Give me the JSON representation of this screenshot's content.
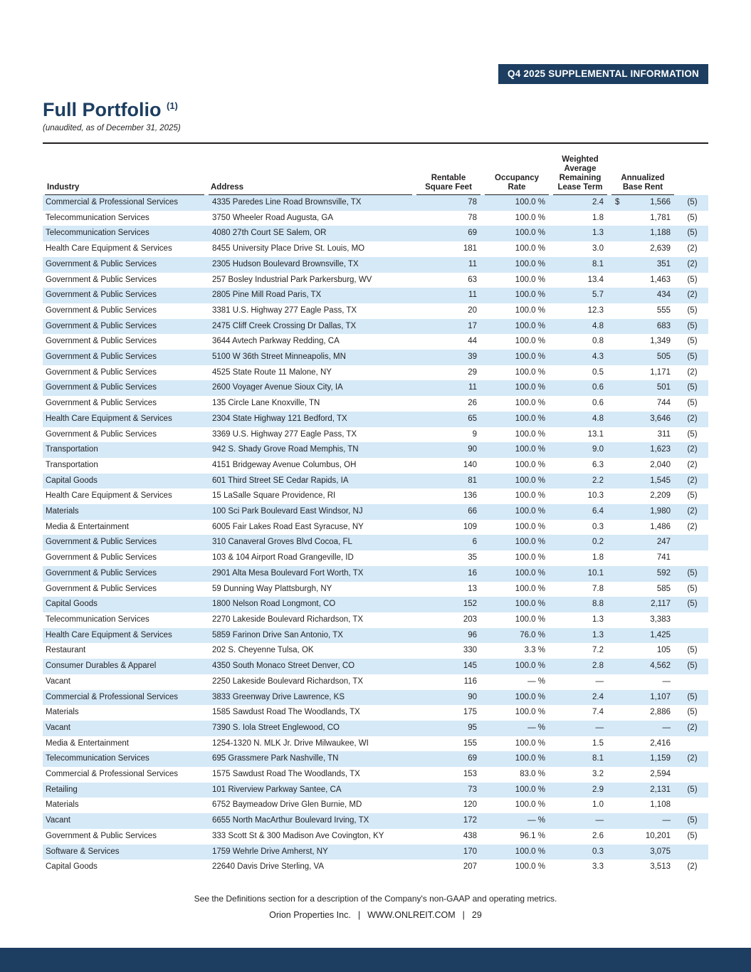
{
  "colors": {
    "navy": "#1d3e60",
    "row_stripe": "#d5e9f7"
  },
  "banner": {
    "label": "Q4 2025 SUPPLEMENTAL INFORMATION"
  },
  "header": {
    "title": "Full Portfolio",
    "title_note": "(1)",
    "subtitle": "(unaudited, as of December 31, 2025)"
  },
  "table": {
    "columns": {
      "industry": "Industry",
      "address": "Address",
      "rentable_sf": "Rentable\nSquare Feet",
      "occupancy": "Occupancy\nRate",
      "lease_term": "Weighted\nAverage\nRemaining\nLease Term",
      "base_rent": "Annualized\nBase Rent"
    },
    "rows": [
      {
        "industry": "Commercial & Professional Services",
        "address": "4335 Paredes Line Road Brownsville, TX",
        "rsf": "78",
        "occupancy": "100.0 %",
        "lease_term": "2.4",
        "currency": "$",
        "base_rent": "1,566",
        "note": "(5)"
      },
      {
        "industry": "Telecommunication Services",
        "address": "3750 Wheeler Road Augusta, GA",
        "rsf": "78",
        "occupancy": "100.0 %",
        "lease_term": "1.8",
        "currency": "",
        "base_rent": "1,781",
        "note": "(5)"
      },
      {
        "industry": "Telecommunication Services",
        "address": "4080 27th Court SE Salem, OR",
        "rsf": "69",
        "occupancy": "100.0 %",
        "lease_term": "1.3",
        "currency": "",
        "base_rent": "1,188",
        "note": "(5)"
      },
      {
        "industry": "Health Care Equipment & Services",
        "address": "8455 University Place Drive St. Louis, MO",
        "rsf": "181",
        "occupancy": "100.0 %",
        "lease_term": "3.0",
        "currency": "",
        "base_rent": "2,639",
        "note": "(2)"
      },
      {
        "industry": "Government & Public Services",
        "address": "2305 Hudson Boulevard Brownsville, TX",
        "rsf": "11",
        "occupancy": "100.0 %",
        "lease_term": "8.1",
        "currency": "",
        "base_rent": "351",
        "note": "(2)"
      },
      {
        "industry": "Government & Public Services",
        "address": "257 Bosley Industrial Park Parkersburg, WV",
        "rsf": "63",
        "occupancy": "100.0 %",
        "lease_term": "13.4",
        "currency": "",
        "base_rent": "1,463",
        "note": "(5)"
      },
      {
        "industry": "Government & Public Services",
        "address": "2805 Pine Mill Road Paris, TX",
        "rsf": "11",
        "occupancy": "100.0 %",
        "lease_term": "5.7",
        "currency": "",
        "base_rent": "434",
        "note": "(2)"
      },
      {
        "industry": "Government & Public Services",
        "address": "3381 U.S. Highway 277 Eagle Pass, TX",
        "rsf": "20",
        "occupancy": "100.0 %",
        "lease_term": "12.3",
        "currency": "",
        "base_rent": "555",
        "note": "(5)"
      },
      {
        "industry": "Government & Public Services",
        "address": "2475 Cliff Creek Crossing Dr Dallas, TX",
        "rsf": "17",
        "occupancy": "100.0 %",
        "lease_term": "4.8",
        "currency": "",
        "base_rent": "683",
        "note": "(5)"
      },
      {
        "industry": "Government & Public Services",
        "address": "3644 Avtech Parkway Redding, CA",
        "rsf": "44",
        "occupancy": "100.0 %",
        "lease_term": "0.8",
        "currency": "",
        "base_rent": "1,349",
        "note": "(5)"
      },
      {
        "industry": "Government & Public Services",
        "address": "5100 W 36th Street Minneapolis, MN",
        "rsf": "39",
        "occupancy": "100.0 %",
        "lease_term": "4.3",
        "currency": "",
        "base_rent": "505",
        "note": "(5)"
      },
      {
        "industry": "Government & Public Services",
        "address": "4525 State Route 11 Malone, NY",
        "rsf": "29",
        "occupancy": "100.0 %",
        "lease_term": "0.5",
        "currency": "",
        "base_rent": "1,171",
        "note": "(2)"
      },
      {
        "industry": "Government & Public Services",
        "address": "2600 Voyager Avenue Sioux City, IA",
        "rsf": "11",
        "occupancy": "100.0 %",
        "lease_term": "0.6",
        "currency": "",
        "base_rent": "501",
        "note": "(5)"
      },
      {
        "industry": "Government & Public Services",
        "address": "135 Circle Lane Knoxville, TN",
        "rsf": "26",
        "occupancy": "100.0 %",
        "lease_term": "0.6",
        "currency": "",
        "base_rent": "744",
        "note": "(5)"
      },
      {
        "industry": "Health Care Equipment & Services",
        "address": "2304 State Highway 121 Bedford, TX",
        "rsf": "65",
        "occupancy": "100.0 %",
        "lease_term": "4.8",
        "currency": "",
        "base_rent": "3,646",
        "note": "(2)"
      },
      {
        "industry": "Government & Public Services",
        "address": "3369 U.S. Highway 277 Eagle Pass, TX",
        "rsf": "9",
        "occupancy": "100.0 %",
        "lease_term": "13.1",
        "currency": "",
        "base_rent": "311",
        "note": "(5)"
      },
      {
        "industry": "Transportation",
        "address": "942 S. Shady Grove Road Memphis, TN",
        "rsf": "90",
        "occupancy": "100.0 %",
        "lease_term": "9.0",
        "currency": "",
        "base_rent": "1,623",
        "note": "(2)"
      },
      {
        "industry": "Transportation",
        "address": "4151 Bridgeway Avenue Columbus, OH",
        "rsf": "140",
        "occupancy": "100.0 %",
        "lease_term": "6.3",
        "currency": "",
        "base_rent": "2,040",
        "note": "(2)"
      },
      {
        "industry": "Capital Goods",
        "address": "601 Third Street SE Cedar Rapids, IA",
        "rsf": "81",
        "occupancy": "100.0 %",
        "lease_term": "2.2",
        "currency": "",
        "base_rent": "1,545",
        "note": "(2)"
      },
      {
        "industry": "Health Care Equipment & Services",
        "address": "15 LaSalle Square Providence, RI",
        "rsf": "136",
        "occupancy": "100.0 %",
        "lease_term": "10.3",
        "currency": "",
        "base_rent": "2,209",
        "note": "(5)"
      },
      {
        "industry": "Materials",
        "address": "100 Sci Park Boulevard East Windsor, NJ",
        "rsf": "66",
        "occupancy": "100.0 %",
        "lease_term": "6.4",
        "currency": "",
        "base_rent": "1,980",
        "note": "(2)"
      },
      {
        "industry": "Media & Entertainment",
        "address": "6005 Fair Lakes Road East Syracuse, NY",
        "rsf": "109",
        "occupancy": "100.0 %",
        "lease_term": "0.3",
        "currency": "",
        "base_rent": "1,486",
        "note": "(2)"
      },
      {
        "industry": "Government & Public Services",
        "address": "310 Canaveral Groves Blvd Cocoa, FL",
        "rsf": "6",
        "occupancy": "100.0 %",
        "lease_term": "0.2",
        "currency": "",
        "base_rent": "247",
        "note": ""
      },
      {
        "industry": "Government & Public Services",
        "address": "103 & 104 Airport Road Grangeville, ID",
        "rsf": "35",
        "occupancy": "100.0 %",
        "lease_term": "1.8",
        "currency": "",
        "base_rent": "741",
        "note": ""
      },
      {
        "industry": "Government & Public Services",
        "address": "2901 Alta Mesa Boulevard Fort Worth, TX",
        "rsf": "16",
        "occupancy": "100.0 %",
        "lease_term": "10.1",
        "currency": "",
        "base_rent": "592",
        "note": "(5)"
      },
      {
        "industry": "Government & Public Services",
        "address": "59 Dunning Way Plattsburgh, NY",
        "rsf": "13",
        "occupancy": "100.0 %",
        "lease_term": "7.8",
        "currency": "",
        "base_rent": "585",
        "note": "(5)"
      },
      {
        "industry": "Capital Goods",
        "address": "1800 Nelson Road Longmont, CO",
        "rsf": "152",
        "occupancy": "100.0 %",
        "lease_term": "8.8",
        "currency": "",
        "base_rent": "2,117",
        "note": "(5)"
      },
      {
        "industry": "Telecommunication Services",
        "address": "2270 Lakeside Boulevard Richardson, TX",
        "rsf": "203",
        "occupancy": "100.0 %",
        "lease_term": "1.3",
        "currency": "",
        "base_rent": "3,383",
        "note": ""
      },
      {
        "industry": "Health Care Equipment & Services",
        "address": "5859 Farinon Drive San Antonio, TX",
        "rsf": "96",
        "occupancy": "76.0 %",
        "lease_term": "1.3",
        "currency": "",
        "base_rent": "1,425",
        "note": ""
      },
      {
        "industry": "Restaurant",
        "address": "202 S. Cheyenne Tulsa, OK",
        "rsf": "330",
        "occupancy": "3.3 %",
        "lease_term": "7.2",
        "currency": "",
        "base_rent": "105",
        "note": "(5)"
      },
      {
        "industry": "Consumer Durables & Apparel",
        "address": "4350 South Monaco Street Denver, CO",
        "rsf": "145",
        "occupancy": "100.0 %",
        "lease_term": "2.8",
        "currency": "",
        "base_rent": "4,562",
        "note": "(5)"
      },
      {
        "industry": "Vacant",
        "address": "2250 Lakeside Boulevard Richardson, TX",
        "rsf": "116",
        "occupancy": "— %",
        "lease_term": "—",
        "currency": "",
        "base_rent": "—",
        "note": ""
      },
      {
        "industry": "Commercial & Professional Services",
        "address": "3833 Greenway Drive Lawrence, KS",
        "rsf": "90",
        "occupancy": "100.0 %",
        "lease_term": "2.4",
        "currency": "",
        "base_rent": "1,107",
        "note": "(5)"
      },
      {
        "industry": "Materials",
        "address": "1585 Sawdust Road The Woodlands, TX",
        "rsf": "175",
        "occupancy": "100.0 %",
        "lease_term": "7.4",
        "currency": "",
        "base_rent": "2,886",
        "note": "(5)"
      },
      {
        "industry": "Vacant",
        "address": "7390 S. Iola Street Englewood, CO",
        "rsf": "95",
        "occupancy": "— %",
        "lease_term": "—",
        "currency": "",
        "base_rent": "—",
        "note": "(2)"
      },
      {
        "industry": "Media & Entertainment",
        "address": "1254-1320 N. MLK Jr. Drive Milwaukee, WI",
        "rsf": "155",
        "occupancy": "100.0 %",
        "lease_term": "1.5",
        "currency": "",
        "base_rent": "2,416",
        "note": ""
      },
      {
        "industry": "Telecommunication Services",
        "address": "695 Grassmere Park Nashville, TN",
        "rsf": "69",
        "occupancy": "100.0 %",
        "lease_term": "8.1",
        "currency": "",
        "base_rent": "1,159",
        "note": "(2)"
      },
      {
        "industry": "Commercial & Professional Services",
        "address": "1575 Sawdust Road The Woodlands, TX",
        "rsf": "153",
        "occupancy": "83.0 %",
        "lease_term": "3.2",
        "currency": "",
        "base_rent": "2,594",
        "note": ""
      },
      {
        "industry": "Retailing",
        "address": "101 Riverview Parkway Santee, CA",
        "rsf": "73",
        "occupancy": "100.0 %",
        "lease_term": "2.9",
        "currency": "",
        "base_rent": "2,131",
        "note": "(5)"
      },
      {
        "industry": "Materials",
        "address": "6752 Baymeadow Drive Glen Burnie, MD",
        "rsf": "120",
        "occupancy": "100.0 %",
        "lease_term": "1.0",
        "currency": "",
        "base_rent": "1,108",
        "note": ""
      },
      {
        "industry": "Vacant",
        "address": "6655 North MacArthur Boulevard Irving, TX",
        "rsf": "172",
        "occupancy": "— %",
        "lease_term": "—",
        "currency": "",
        "base_rent": "—",
        "note": "(5)"
      },
      {
        "industry": "Government & Public Services",
        "address": "333 Scott St & 300 Madison Ave Covington, KY",
        "rsf": "438",
        "occupancy": "96.1 %",
        "lease_term": "2.6",
        "currency": "",
        "base_rent": "10,201",
        "note": "(5)"
      },
      {
        "industry": "Software & Services",
        "address": "1759 Wehrle Drive Amherst, NY",
        "rsf": "170",
        "occupancy": "100.0 %",
        "lease_term": "0.3",
        "currency": "",
        "base_rent": "3,075",
        "note": ""
      },
      {
        "industry": "Capital Goods",
        "address": "22640 Davis Drive Sterling, VA",
        "rsf": "207",
        "occupancy": "100.0 %",
        "lease_term": "3.3",
        "currency": "",
        "base_rent": "3,513",
        "note": "(2)"
      }
    ]
  },
  "footer": {
    "definitions_note": "See the Definitions section for a description of the Company's non-GAAP and operating metrics.",
    "company": "Orion Properties Inc.",
    "separator": "|",
    "website": "WWW.ONLREIT.COM",
    "page_number": "29"
  }
}
